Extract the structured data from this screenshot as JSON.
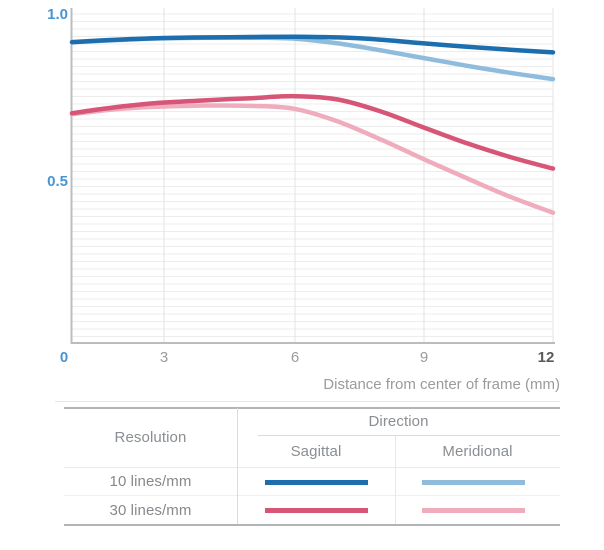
{
  "chart_data": {
    "type": "line",
    "title": "",
    "xlabel": "Distance from center of frame (mm)",
    "ylabel": "",
    "xlim": [
      0,
      12
    ],
    "ylim": [
      0,
      1.0
    ],
    "x_ticks": [
      "0",
      "3",
      "6",
      "9",
      "12"
    ],
    "y_ticks": [
      "1.0",
      "0.5"
    ],
    "grid": "fine horizontal rules + vertical rules at each x tick",
    "legend_position": "table below chart",
    "x": [
      0,
      1,
      2,
      3,
      4,
      5,
      6,
      7,
      8,
      9,
      10,
      11,
      12
    ],
    "series": [
      {
        "name": "10 lines/mm Sagittal",
        "color": "#1c6eae",
        "values": [
          0.916,
          0.921,
          0.925,
          0.928,
          0.93,
          0.931,
          0.932,
          0.93,
          0.923,
          0.912,
          0.902,
          0.893,
          0.885
        ]
      },
      {
        "name": "10 lines/mm Meridional",
        "color": "#8fbcdd",
        "values": [
          0.915,
          0.92,
          0.924,
          0.927,
          0.929,
          0.929,
          0.926,
          0.912,
          0.891,
          0.868,
          0.845,
          0.824,
          0.805
        ]
      },
      {
        "name": "30 lines/mm Sagittal",
        "color": "#d75577",
        "values": [
          0.703,
          0.716,
          0.727,
          0.735,
          0.742,
          0.748,
          0.754,
          0.744,
          0.708,
          0.66,
          0.613,
          0.572,
          0.537
        ]
      },
      {
        "name": "30 lines/mm Meridional",
        "color": "#efacbd",
        "values": [
          0.7,
          0.711,
          0.719,
          0.723,
          0.726,
          0.725,
          0.716,
          0.678,
          0.624,
          0.565,
          0.508,
          0.453,
          0.405
        ]
      }
    ]
  },
  "colors": {
    "y_label_blue": "#4796d4",
    "x_tick_gray": "#9b9b9b",
    "x_tick_dark": "#58595b",
    "axis_line": "#b9bdc1",
    "grid_h": "#ededed",
    "grid_v": "#e3e3e3",
    "axis_title_gray": "#9b9b9b"
  },
  "legend_table": {
    "resolution_header": "Resolution",
    "direction_header": "Direction",
    "direction_columns": [
      "Sagittal",
      "Meridional"
    ],
    "rows": [
      {
        "label": "10 lines/mm",
        "sagittal_color": "#1c6eae",
        "meridional_color": "#8fbcdd"
      },
      {
        "label": "30 lines/mm",
        "sagittal_color": "#d75577",
        "meridional_color": "#efacbd"
      }
    ]
  }
}
